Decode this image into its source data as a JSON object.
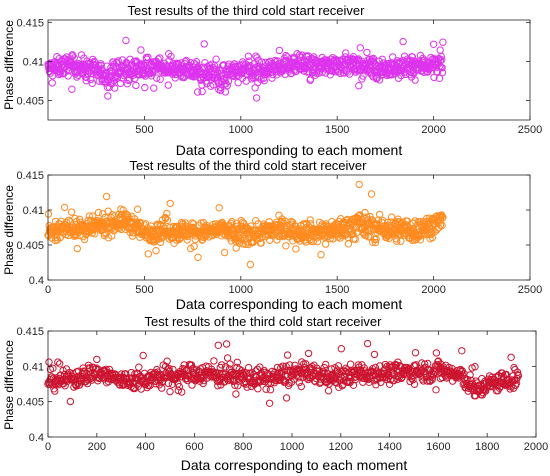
{
  "chart_data": [
    {
      "type": "scatter",
      "title": "Test results of the third cold start receiver",
      "xlabel": "Data corresponding to each moment",
      "ylabel": "Phase difference",
      "xlim": [
        0,
        2500
      ],
      "ylim": [
        0.4025,
        0.4153
      ],
      "xticks": [
        "500",
        "1000",
        "1500",
        "2000",
        "2500"
      ],
      "yticks": [
        "0.405",
        "0.41",
        "0.415"
      ],
      "grid": false,
      "marker": "open-circle",
      "series": [
        {
          "color": "#DD33EE",
          "n_points": 2050,
          "x": [
            0,
            100,
            200,
            300,
            400,
            500,
            600,
            700,
            800,
            900,
            1000,
            1100,
            1200,
            1300,
            1400,
            1500,
            1600,
            1700,
            1800,
            1900,
            2000,
            2050
          ],
          "y_mean": [
            0.409,
            0.4095,
            0.4092,
            0.4082,
            0.4088,
            0.409,
            0.4093,
            0.4089,
            0.4085,
            0.408,
            0.4088,
            0.4086,
            0.4095,
            0.4096,
            0.4092,
            0.4098,
            0.4094,
            0.4092,
            0.409,
            0.4094,
            0.4096,
            0.4094
          ],
          "y_min": [
            0.4055,
            0.406,
            0.405,
            0.405,
            0.4058,
            0.4055,
            0.406,
            0.4055,
            0.405,
            0.403,
            0.4055,
            0.404,
            0.4058,
            0.406,
            0.4055,
            0.406,
            0.4058,
            0.405,
            0.4055,
            0.4058,
            0.406,
            0.406
          ],
          "y_max": [
            0.412,
            0.4125,
            0.412,
            0.4125,
            0.414,
            0.412,
            0.4122,
            0.4118,
            0.4125,
            0.4118,
            0.4128,
            0.4132,
            0.4125,
            0.4128,
            0.4125,
            0.413,
            0.4125,
            0.4125,
            0.4128,
            0.413,
            0.4132,
            0.4128
          ]
        }
      ]
    },
    {
      "type": "scatter",
      "title": "Test results of the third cold start receiver",
      "xlabel": "Data corresponding to each moment",
      "ylabel": "Phase difference",
      "xlim": [
        0,
        2500
      ],
      "ylim": [
        0.4,
        0.415
      ],
      "xticks": [
        "0",
        "500",
        "1000",
        "1500",
        "2000",
        "2500"
      ],
      "yticks": [
        "0.4",
        "0.405",
        "0.41",
        "0.415"
      ],
      "grid": false,
      "marker": "open-circle",
      "series": [
        {
          "color": "#FF8A1E",
          "n_points": 2050,
          "x": [
            0,
            100,
            200,
            300,
            400,
            500,
            600,
            700,
            800,
            900,
            1000,
            1100,
            1200,
            1300,
            1400,
            1500,
            1600,
            1700,
            1800,
            1900,
            2000,
            2050
          ],
          "y_mean": [
            0.407,
            0.4075,
            0.4072,
            0.408,
            0.4085,
            0.4068,
            0.4072,
            0.407,
            0.4068,
            0.4072,
            0.4065,
            0.4068,
            0.4072,
            0.407,
            0.4068,
            0.4072,
            0.4078,
            0.4075,
            0.4072,
            0.407,
            0.408,
            0.4085
          ],
          "y_min": [
            0.404,
            0.404,
            0.4035,
            0.404,
            0.4045,
            0.403,
            0.402,
            0.4035,
            0.403,
            0.404,
            0.4012,
            0.403,
            0.4035,
            0.4035,
            0.403,
            0.4035,
            0.404,
            0.4035,
            0.4025,
            0.403,
            0.4045,
            0.405
          ],
          "y_max": [
            0.41,
            0.411,
            0.4105,
            0.4125,
            0.4125,
            0.41,
            0.411,
            0.4115,
            0.4105,
            0.4108,
            0.411,
            0.4115,
            0.411,
            0.4115,
            0.411,
            0.4115,
            0.415,
            0.4125,
            0.4118,
            0.4118,
            0.412,
            0.4125
          ]
        }
      ]
    },
    {
      "type": "scatter",
      "title": "Test results of the third cold start receiver",
      "xlabel": "Data corresponding to each moment",
      "ylabel": "Phase difference",
      "xlim": [
        0,
        2000
      ],
      "ylim": [
        0.4,
        0.415
      ],
      "xticks": [
        "0",
        "200",
        "400",
        "600",
        "800",
        "1000",
        "1200",
        "1400",
        "1600",
        "1800",
        "2000"
      ],
      "yticks": [
        "0.4",
        "0.405",
        "0.41",
        "0.415"
      ],
      "grid": false,
      "marker": "open-circle",
      "series": [
        {
          "color": "#CC1530",
          "n_points": 1930,
          "x": [
            0,
            100,
            200,
            300,
            400,
            500,
            600,
            700,
            800,
            900,
            1000,
            1100,
            1200,
            1300,
            1400,
            1500,
            1600,
            1700,
            1750,
            1800,
            1900,
            1930
          ],
          "y_mean": [
            0.408,
            0.4082,
            0.4092,
            0.408,
            0.4082,
            0.4085,
            0.409,
            0.4088,
            0.4085,
            0.4082,
            0.409,
            0.4088,
            0.4085,
            0.409,
            0.409,
            0.4092,
            0.4095,
            0.4085,
            0.4065,
            0.4075,
            0.408,
            0.4085
          ],
          "y_min": [
            0.4045,
            0.4045,
            0.4055,
            0.4045,
            0.4045,
            0.405,
            0.4055,
            0.405,
            0.405,
            0.4045,
            0.404,
            0.405,
            0.405,
            0.4055,
            0.4055,
            0.406,
            0.406,
            0.405,
            0.4025,
            0.4045,
            0.405,
            0.4055
          ],
          "y_max": [
            0.412,
            0.4118,
            0.4132,
            0.4115,
            0.412,
            0.4125,
            0.4128,
            0.4138,
            0.4125,
            0.412,
            0.413,
            0.4125,
            0.4125,
            0.4135,
            0.4128,
            0.413,
            0.4145,
            0.4122,
            0.411,
            0.4115,
            0.4125,
            0.4128
          ]
        }
      ]
    }
  ]
}
